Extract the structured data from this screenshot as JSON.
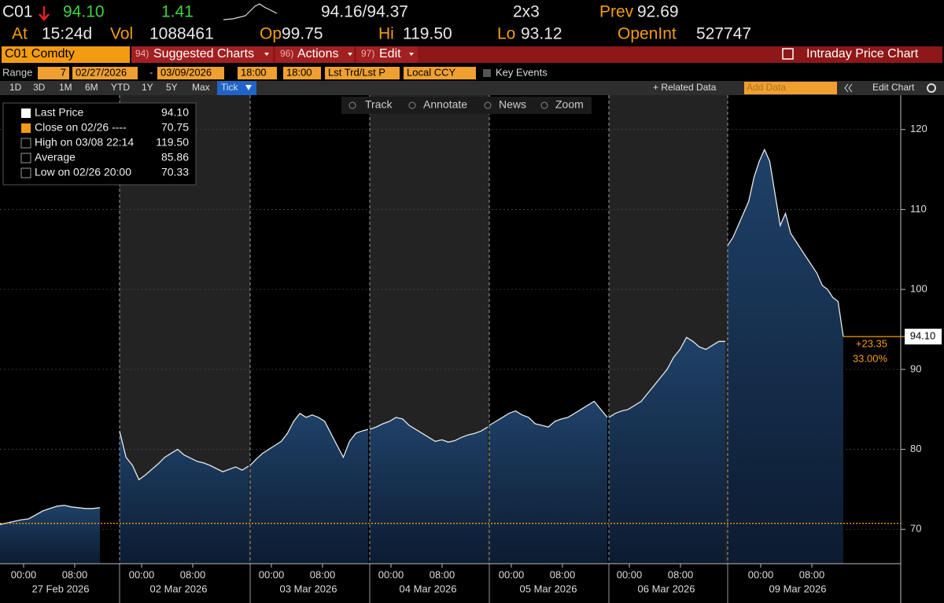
{
  "quote": {
    "ticker": "C01",
    "last": "94.10",
    "change": "1.41",
    "bid_ask": "94.16/94.37",
    "size": "2x3",
    "prev_label": "Prev",
    "prev": "92.69",
    "at_label": "At",
    "time": "15:24d",
    "vol_label": "Vol",
    "vol": "1088461",
    "op_label": "Op",
    "op": "99.75",
    "hi_label": "Hi",
    "hi": "119.50",
    "lo_label": "Lo",
    "lo": "93.12",
    "oi_label": "OpenInt",
    "oi": "527747"
  },
  "toolbar": {
    "security": "C01 Comdty",
    "menus": [
      {
        "code": "94)",
        "label": "Suggested Charts"
      },
      {
        "code": "96)",
        "label": "Actions"
      },
      {
        "code": "97)",
        "label": "Edit"
      }
    ],
    "view": "Intraday Price Chart"
  },
  "range": {
    "label": "Range",
    "days": "7",
    "start": "02/27/2026",
    "dash": "-",
    "end": "03/09/2026",
    "start_time": "18:00",
    "end_time": "18:00",
    "field": "Lst Trd/Lst P",
    "currency": "Local CCY",
    "events": "Key Events"
  },
  "periods": [
    "1D",
    "3D",
    "1M",
    "6M",
    "YTD",
    "1Y",
    "5Y",
    "Max",
    "Tick"
  ],
  "side_tools": {
    "related": "+ Related Data",
    "add": "Add Data",
    "edit": "Edit Chart"
  },
  "chart_tools": [
    "Track",
    "Annotate",
    "News",
    "Zoom"
  ],
  "legend": [
    {
      "label": "Last Price",
      "value": "94.10"
    },
    {
      "label": "Close on 02/26 ----",
      "value": "70.75"
    },
    {
      "label": "High on 03/08 22:14",
      "value": "119.50"
    },
    {
      "label": "Average",
      "value": "85.86"
    },
    {
      "label": "Low on 02/26 20:00",
      "value": "70.33"
    }
  ],
  "chart_data": {
    "type": "area",
    "ylim": [
      65.7,
      124.3
    ],
    "yticks": [
      70,
      80,
      90,
      100,
      110,
      120
    ],
    "prev_close": 70.75,
    "last": {
      "value": 94.1,
      "label": "94.10"
    },
    "change_labels": [
      "+23.35",
      "33.00%"
    ],
    "color": "#1c3a5e",
    "sessions": [
      {
        "date": "27 Feb 2026",
        "times": [
          "00:00",
          "08:00"
        ],
        "values": [
          70.6,
          70.8,
          71.0,
          71.2,
          71.3,
          71.8,
          72.3,
          72.6,
          72.9,
          73.0,
          72.8,
          72.7,
          72.6,
          72.6,
          72.7
        ]
      },
      {
        "date": "02 Mar 2026",
        "times": [
          "00:00",
          "08:00"
        ],
        "values": [
          82.3,
          79.0,
          78.0,
          76.2,
          76.8,
          77.5,
          78.2,
          79.0,
          79.5,
          80.0,
          79.3,
          78.9,
          78.5,
          78.3,
          78.0,
          77.6,
          77.2,
          77.5,
          77.8,
          77.4,
          77.9
        ]
      },
      {
        "date": "03 Mar 2026",
        "times": [
          "00:00",
          "08:00"
        ],
        "values": [
          78.0,
          78.8,
          79.5,
          80.0,
          80.5,
          81.0,
          82.0,
          83.5,
          84.5,
          84.0,
          84.3,
          84.0,
          83.5,
          82.0,
          80.5,
          79.0,
          81.0,
          82.0,
          82.3,
          82.5
        ]
      },
      {
        "date": "04 Mar 2026",
        "times": [
          "00:00",
          "08:00"
        ],
        "values": [
          82.5,
          82.8,
          83.2,
          83.5,
          84.0,
          83.8,
          83.0,
          82.5,
          82.0,
          81.5,
          81.0,
          81.2,
          80.9,
          81.1,
          81.5,
          81.8,
          82.0,
          82.3,
          82.8
        ]
      },
      {
        "date": "05 Mar 2026",
        "times": [
          "00:00",
          "08:00"
        ],
        "values": [
          83.0,
          83.5,
          84.0,
          84.5,
          84.8,
          84.3,
          84.0,
          83.2,
          83.0,
          82.8,
          83.5,
          83.8,
          84.0,
          84.5,
          85.0,
          85.5,
          86.0,
          85.0,
          84.0
        ]
      },
      {
        "date": "06 Mar 2026",
        "times": [
          "00:00",
          "08:00"
        ],
        "values": [
          84.0,
          84.5,
          84.8,
          85.0,
          85.5,
          86.0,
          87.0,
          88.0,
          89.0,
          90.0,
          91.5,
          92.5,
          94.0,
          93.5,
          92.8,
          92.5,
          93.0,
          93.5,
          93.5
        ]
      },
      {
        "date": "09 Mar 2026",
        "times": [
          "00:00",
          "08:00"
        ],
        "values": [
          105.5,
          106.5,
          108.0,
          109.5,
          111.0,
          114.0,
          116.0,
          117.5,
          116.0,
          112.0,
          108.0,
          109.5,
          107.0,
          106.0,
          105.0,
          104.0,
          103.0,
          102.0,
          100.5,
          100.0,
          99.0,
          98.5,
          94.1
        ]
      }
    ]
  }
}
